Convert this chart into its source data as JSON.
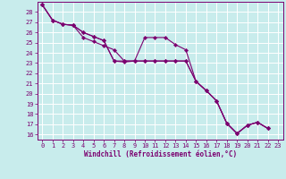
{
  "xlabel": "Windchill (Refroidissement éolien,°C)",
  "bg_color": "#c8ecec",
  "grid_color": "#ffffff",
  "line_color": "#7b0070",
  "xlim": [
    -0.5,
    23.5
  ],
  "ylim": [
    15.5,
    29.0
  ],
  "xticks": [
    0,
    1,
    2,
    3,
    4,
    5,
    6,
    7,
    8,
    9,
    10,
    11,
    12,
    13,
    14,
    15,
    16,
    17,
    18,
    19,
    20,
    21,
    22,
    23
  ],
  "yticks": [
    16,
    17,
    18,
    19,
    20,
    21,
    22,
    23,
    24,
    25,
    26,
    27,
    28
  ],
  "series1": [
    28.7,
    27.2,
    26.8,
    26.7,
    26.0,
    25.6,
    25.2,
    23.2,
    23.1,
    23.2,
    25.5,
    25.5,
    25.5,
    24.8,
    24.3,
    21.2,
    20.3,
    19.3,
    17.1,
    16.1,
    16.9,
    17.2,
    16.6
  ],
  "series2": [
    28.7,
    27.2,
    26.8,
    26.7,
    25.5,
    25.1,
    24.7,
    24.3,
    23.2,
    23.2,
    23.2,
    23.2,
    23.2,
    23.2,
    23.2,
    21.2,
    20.3,
    19.3,
    17.1,
    16.1,
    16.9,
    17.2,
    16.6
  ],
  "series3": [
    28.7,
    27.2,
    26.8,
    26.7,
    26.0,
    25.6,
    25.2,
    23.2,
    23.2,
    23.2,
    23.2,
    23.2,
    23.2,
    23.2,
    23.2,
    21.2,
    20.3,
    19.3,
    17.1,
    16.1,
    16.9,
    17.2,
    16.6
  ]
}
